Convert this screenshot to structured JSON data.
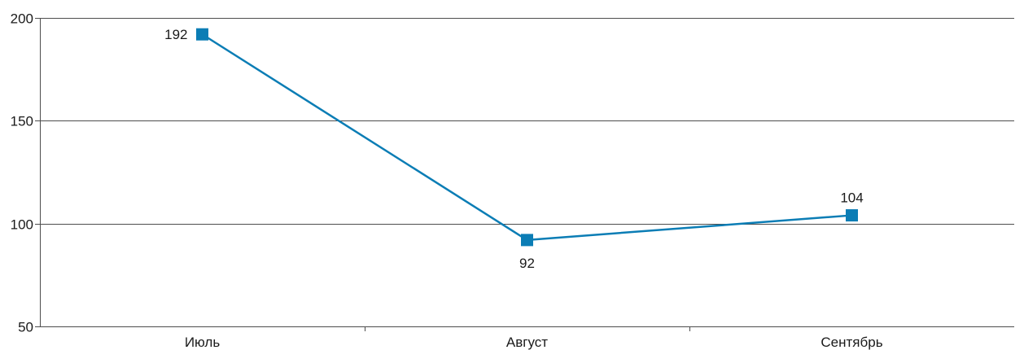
{
  "chart_data": {
    "type": "line",
    "categories": [
      "Июль",
      "Август",
      "Сентябрь"
    ],
    "series": [
      {
        "values": [
          192,
          92,
          104
        ]
      }
    ],
    "ylim": [
      50,
      200
    ],
    "yticks": [
      50,
      100,
      150,
      200
    ],
    "grid": true,
    "color": "#0b7db5",
    "title": "",
    "xlabel": "",
    "ylabel": ""
  }
}
